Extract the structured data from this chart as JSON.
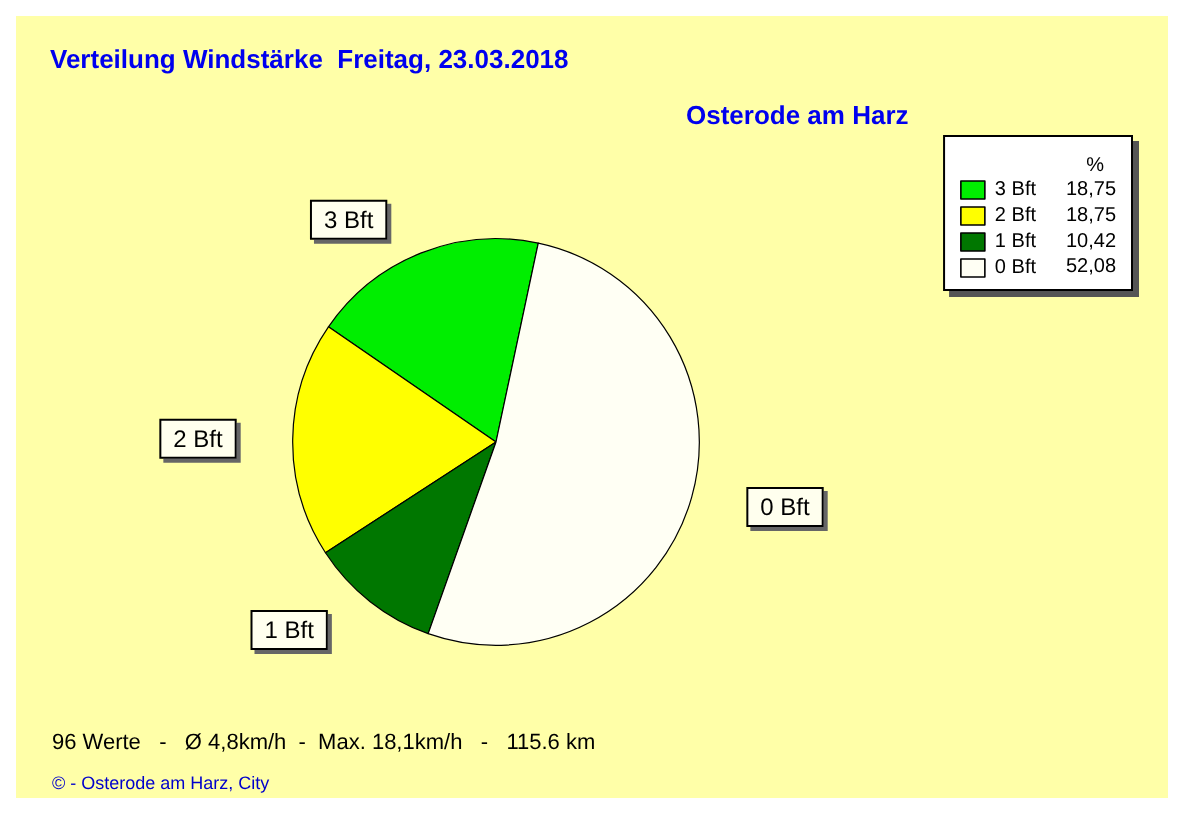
{
  "chart_data": {
    "type": "pie",
    "title": "Verteilung Windstärke  Freitag, 23.03.2018",
    "subtitle": "Osterode am Harz",
    "legend_title": "%",
    "legend": "top right",
    "categories": [
      "3 Bft",
      "2 Bft",
      "1 Bft",
      "0 Bft"
    ],
    "values": [
      18.75,
      18.75,
      10.42,
      52.08
    ],
    "value_labels": [
      "18,75",
      "18,75",
      "10,42",
      "52,08"
    ],
    "colors": [
      "#00ee00",
      "#ffff00",
      "#007700",
      "#fffff4"
    ],
    "annotations": [
      "96 Werte   -   Ø 4,8km/h  -  Max. 18,1km/h   -   115.6 km",
      "© - Osterode am Harz, City"
    ]
  }
}
